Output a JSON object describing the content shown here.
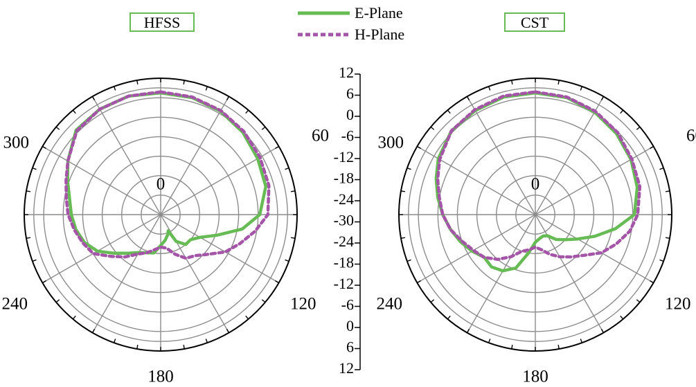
{
  "colors": {
    "e_plane": "#66bb55",
    "h_plane": "#a555a8",
    "grid": "#8c8c8c",
    "box_border": "#66bb55"
  },
  "legend": [
    {
      "label": "E-Plane",
      "style": "solid",
      "color": "#66bb55"
    },
    {
      "label": "H-Plane",
      "style": "dashed",
      "color": "#a555a8"
    }
  ],
  "scale_axis": {
    "upper_ticks": [
      "12",
      "6",
      "0",
      "-6",
      "-12",
      "-18",
      "-24",
      "-30"
    ],
    "lower_ticks": [
      "-24",
      "-18",
      "-12",
      "-6",
      "0",
      "6",
      "12"
    ]
  },
  "chart_data": [
    {
      "type": "polar",
      "title": "HFSS",
      "angle_labels": [
        "0",
        "60",
        "120",
        "180",
        "240",
        "300"
      ],
      "radial_range_db": [
        -30,
        12
      ],
      "radial_ticks_db": [
        -30,
        -24,
        -18,
        -12,
        -6,
        0,
        6,
        12
      ],
      "grid": true,
      "series": [
        {
          "name": "E-Plane",
          "theta_deg": [
            0,
            15,
            30,
            45,
            60,
            75,
            90,
            100,
            110,
            120,
            130,
            140,
            150,
            155,
            160,
            170,
            180,
            190,
            200,
            210,
            220,
            230,
            240,
            250,
            260,
            270,
            280,
            290,
            300,
            315,
            330,
            345,
            360
          ],
          "gain_db": [
            7.5,
            7.3,
            6.8,
            5.8,
            4.5,
            3.5,
            0.5,
            -4.5,
            -11.5,
            -16,
            -18,
            -18,
            -20.5,
            -24.5,
            -23.5,
            -22,
            -20.5,
            -18,
            -17.5,
            -16.5,
            -14.5,
            -11.5,
            -7.5,
            -5,
            -3.5,
            -2.5,
            -1.5,
            0.5,
            3,
            6.8,
            7.5,
            7.8,
            7.5
          ]
        },
        {
          "name": "H-Plane",
          "theta_deg": [
            0,
            15,
            30,
            45,
            60,
            75,
            90,
            100,
            110,
            120,
            130,
            140,
            150,
            160,
            170,
            180,
            190,
            200,
            210,
            220,
            230,
            240,
            250,
            260,
            270,
            280,
            290,
            300,
            315,
            330,
            345,
            360
          ],
          "gain_db": [
            7.8,
            7.5,
            7,
            6.2,
            5.3,
            4.5,
            3,
            -0.5,
            -4,
            -7,
            -11,
            -13.5,
            -14.5,
            -17,
            -19.5,
            -20,
            -19,
            -17.5,
            -16,
            -13,
            -10,
            -6,
            -4.5,
            -3,
            -1.5,
            -0.5,
            1,
            3,
            6.5,
            7.5,
            7.8,
            7.8
          ]
        }
      ]
    },
    {
      "type": "polar",
      "title": "CST",
      "angle_labels": [
        "0",
        "60",
        "120",
        "180",
        "240",
        "300"
      ],
      "radial_range_db": [
        -30,
        12
      ],
      "radial_ticks_db": [
        -30,
        -24,
        -18,
        -12,
        -6,
        0,
        6,
        12
      ],
      "grid": true,
      "series": [
        {
          "name": "E-Plane",
          "theta_deg": [
            0,
            15,
            30,
            45,
            60,
            75,
            90,
            100,
            110,
            120,
            130,
            140,
            150,
            160,
            170,
            180,
            190,
            200,
            210,
            220,
            230,
            240,
            250,
            260,
            270,
            280,
            290,
            300,
            315,
            330,
            345,
            360
          ],
          "gain_db": [
            7.5,
            7.3,
            6.5,
            5.3,
            4,
            2.5,
            0.5,
            -5,
            -10.5,
            -15,
            -18,
            -20,
            -22.5,
            -23,
            -22.5,
            -21.5,
            -18,
            -12.5,
            -10,
            -9,
            -9.5,
            -7.5,
            -5.5,
            -3.5,
            -1.5,
            0.5,
            2.5,
            4.5,
            6.5,
            7,
            7.5,
            7.5
          ]
        },
        {
          "name": "H-Plane",
          "theta_deg": [
            0,
            15,
            30,
            45,
            60,
            75,
            90,
            100,
            110,
            120,
            130,
            140,
            150,
            160,
            170,
            180,
            190,
            200,
            210,
            220,
            230,
            240,
            250,
            260,
            270,
            280,
            290,
            300,
            315,
            330,
            345,
            360
          ],
          "gain_db": [
            7.8,
            7.5,
            6.8,
            5.8,
            4.3,
            3.3,
            1.5,
            -0.5,
            -3.5,
            -6.5,
            -10.5,
            -13,
            -15,
            -17,
            -19,
            -20,
            -19,
            -18,
            -15,
            -12,
            -9.5,
            -8,
            -6,
            -3.5,
            -1.5,
            0,
            2,
            4,
            6.5,
            7.3,
            7.8,
            7.8
          ]
        }
      ]
    }
  ]
}
